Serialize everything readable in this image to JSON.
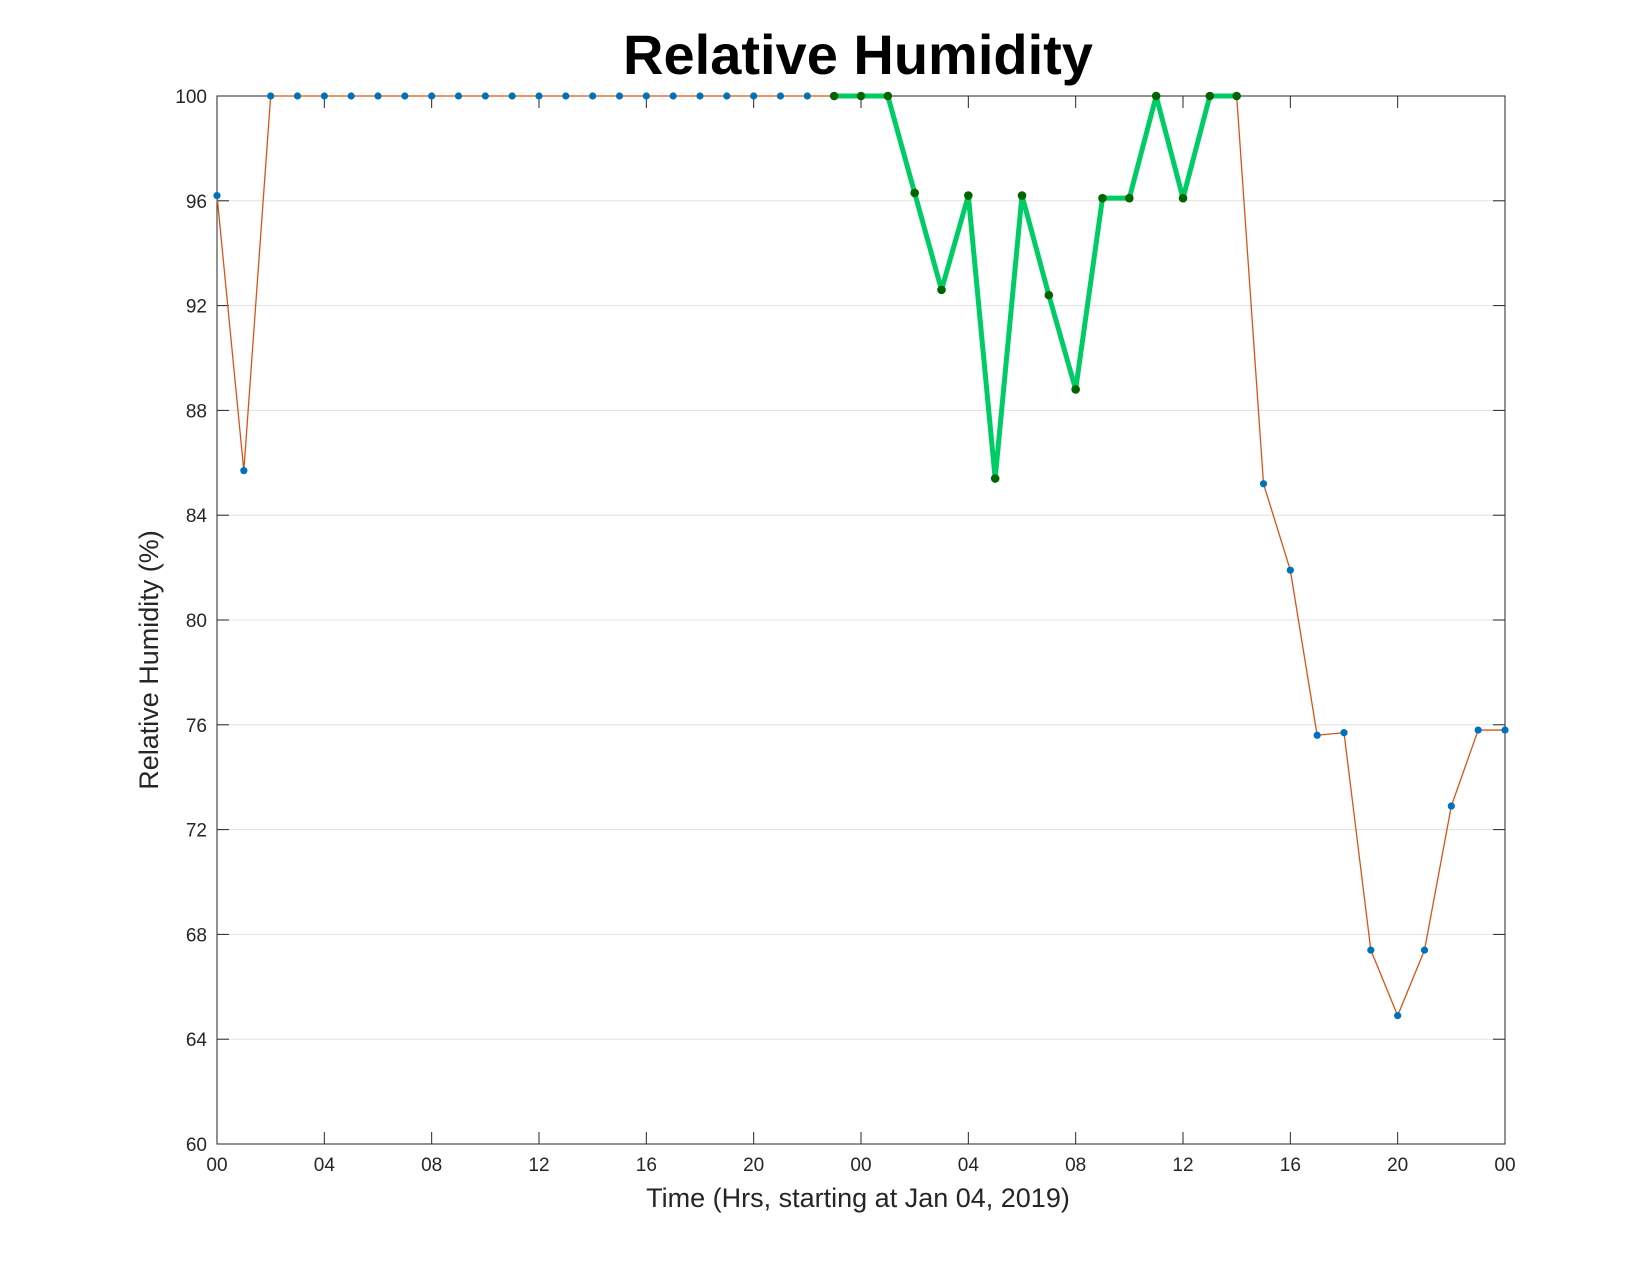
{
  "chart_data": {
    "type": "line",
    "title": "Relative Humidity",
    "xlabel": "Time (Hrs, starting at Jan 04, 2019)",
    "ylabel": "Relative Humidity (%)",
    "ylim": [
      60,
      100
    ],
    "xlim": [
      0,
      48
    ],
    "x_unit": "hours",
    "x_ticks": [
      0,
      4,
      8,
      12,
      16,
      20,
      24,
      28,
      32,
      36,
      40,
      44,
      48
    ],
    "x_tick_labels": [
      "00",
      "04",
      "08",
      "12",
      "16",
      "20",
      "00",
      "04",
      "08",
      "12",
      "16",
      "20",
      "00"
    ],
    "y_ticks": [
      60,
      64,
      68,
      72,
      76,
      80,
      84,
      88,
      92,
      96,
      100
    ],
    "y_tick_labels": [
      "60",
      "64",
      "68",
      "72",
      "76",
      "80",
      "84",
      "88",
      "92",
      "96",
      "100"
    ],
    "grid": "horizontal",
    "legend": "none",
    "colors": {
      "line": "#d95319",
      "markers": "#0072bd",
      "highlight_line": "#00cc66",
      "highlight_markers": "#006400",
      "grid": "#e0e0e0",
      "axis": "#262626"
    },
    "series": [
      {
        "x": [
          0,
          1,
          2,
          3,
          4,
          5,
          6,
          7,
          8,
          9,
          10,
          11,
          12,
          13,
          14,
          15,
          16,
          17,
          18,
          19,
          20,
          21,
          22,
          23,
          24,
          25,
          26,
          27,
          28,
          29,
          30,
          31,
          32,
          33,
          34,
          35,
          36,
          37,
          38,
          39,
          40,
          41,
          42,
          43,
          44,
          45,
          46,
          47,
          48
        ],
        "values": [
          96.2,
          85.7,
          100,
          100,
          100,
          100,
          100,
          100,
          100,
          100,
          100,
          100,
          100,
          100,
          100,
          100,
          100,
          100,
          100,
          100,
          100,
          100,
          100,
          100,
          100,
          100,
          96.3,
          92.6,
          96.2,
          85.4,
          96.2,
          92.4,
          88.8,
          96.1,
          96.1,
          100,
          96.1,
          100,
          100,
          85.2,
          81.9,
          75.6,
          75.7,
          67.4,
          64.9,
          67.4,
          72.9,
          75.8,
          75.8
        ]
      },
      {
        "x": [
          23,
          24,
          25,
          26,
          27,
          28,
          29,
          30,
          31,
          32,
          33,
          34,
          35,
          36,
          37,
          38
        ],
        "values": [
          100,
          100,
          100,
          96.3,
          92.6,
          96.2,
          85.4,
          96.2,
          92.4,
          88.8,
          96.1,
          96.1,
          100,
          96.1,
          100,
          100
        ]
      }
    ]
  }
}
